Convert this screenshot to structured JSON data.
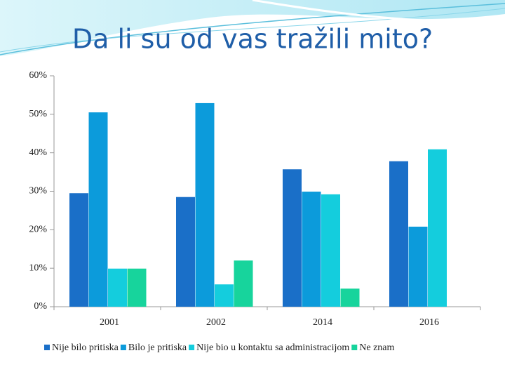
{
  "chart_data": {
    "type": "bar",
    "title": "Da li su od vas tražili mito?",
    "categories": [
      "2001",
      "2002",
      "2014",
      "2016"
    ],
    "series": [
      {
        "name": "Nije bilo pritiska",
        "color": "#1a6fc8",
        "values": [
          29.5,
          28.5,
          35.7,
          37.8
        ]
      },
      {
        "name": "Bilo je pritiska",
        "color": "#0c9bdb",
        "values": [
          50.5,
          52.9,
          29.9,
          20.8
        ]
      },
      {
        "name": "Nije bio u kontaktu sa administracijom",
        "color": "#14cddd",
        "values": [
          9.9,
          5.8,
          29.2,
          40.9
        ]
      },
      {
        "name": "Ne znam",
        "color": "#17d49c",
        "values": [
          9.9,
          12.0,
          4.7,
          null
        ]
      }
    ],
    "ylim": [
      0,
      60
    ],
    "yticks": [
      {
        "value": 0,
        "label": "0%"
      },
      {
        "value": 10,
        "label": "10%"
      },
      {
        "value": 20,
        "label": "20%"
      },
      {
        "value": 30,
        "label": "30%"
      },
      {
        "value": 40,
        "label": "40%"
      },
      {
        "value": 50,
        "label": "50%"
      },
      {
        "value": 60,
        "label": "60%"
      }
    ],
    "legend": "bottom"
  }
}
